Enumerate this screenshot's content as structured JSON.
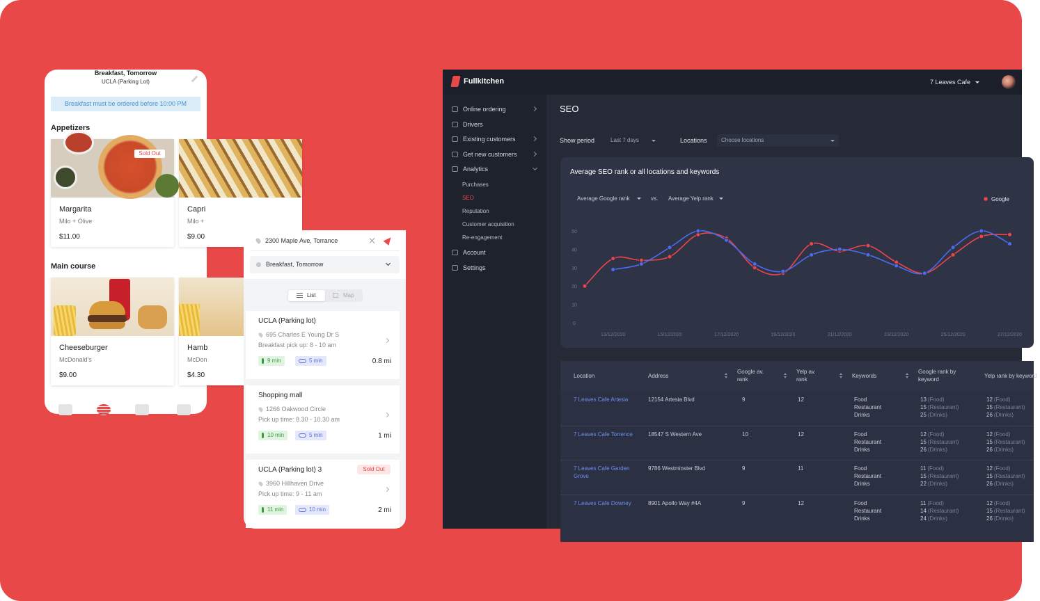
{
  "order_app": {
    "header": {
      "title": "Breakfast, Tomorrow",
      "subtitle": "UCLA (Parking Lot)"
    },
    "notice": "Breakfast must be ordered before 10:00 PM",
    "sections": [
      {
        "title": "Appetizers",
        "items": [
          {
            "name": "Margarita",
            "vendor": "Milo + Olive",
            "price": "$11.00",
            "badge": "Sold Out"
          },
          {
            "name": "Capri",
            "vendor": "Milo +",
            "price": "$9.00"
          }
        ]
      },
      {
        "title": "Main course",
        "items": [
          {
            "name": "Cheeseburger",
            "vendor": "McDonald's",
            "price": "$9.00"
          },
          {
            "name": "Hamb",
            "vendor": "McDon",
            "price": "$4.30"
          }
        ]
      }
    ]
  },
  "pickup_app": {
    "address": "2300 Maple Ave, Torrance",
    "meal": "Breakfast, Tomorrow",
    "tabs": [
      "List",
      "Map"
    ],
    "locations": [
      {
        "name": "UCLA (Parking lot)",
        "address": "695 Charles E Young Dr S",
        "pickup": "Breakfast pick up: 8 - 10 am",
        "walk": "9 min",
        "bike": "5 min",
        "distance": "0.8 mi"
      },
      {
        "name": "Shopping mall",
        "address": "1266  Oakwood Circle",
        "pickup": "Pick up time: 8.30 - 10.30 am",
        "walk": "10 min",
        "bike": "5 min",
        "distance": "1 mi"
      },
      {
        "name": "UCLA (Parking lot) 3",
        "badge": "Sold Out",
        "address": "3960  Hillhaven Drive",
        "pickup": "Pick up time: 9 - 11 am",
        "walk": "11 min",
        "bike": "10 min",
        "distance": "2 mi"
      }
    ]
  },
  "dashboard": {
    "brand": "Fullkitchen",
    "location": "7 Leaves Cafe",
    "nav": [
      {
        "label": "Online ordering"
      },
      {
        "label": "Drivers"
      },
      {
        "label": "Existing customers"
      },
      {
        "label": "Get new customers"
      },
      {
        "label": "Analytics",
        "children": [
          "Purchases",
          "SEO",
          "Reputation",
          "Customer acquisition",
          "Re-engagement"
        ]
      },
      {
        "label": "Account"
      },
      {
        "label": "Settings"
      }
    ],
    "page_title": "SEO",
    "filters": [
      {
        "label": "Show period",
        "value": "Last 7 days"
      },
      {
        "label": "Locations",
        "value": "Choose locations"
      }
    ],
    "chart_controls": {
      "left": "Average Google rank",
      "vs": "vs.",
      "right": "Average Yelp rank"
    },
    "table": {
      "headers": [
        "Location",
        "Address",
        "Google av. rank",
        "Yelp av. rank",
        "Keywords",
        "Google rank by keyword",
        "Yelp rank by keyword"
      ],
      "rows": [
        {
          "location": "7 Leaves Cafe Artesia",
          "address": "12154 Artesia Blvd",
          "google_avg": 9,
          "yelp_avg": 12,
          "keywords": [
            "Food",
            "Restaurant",
            "Drinks"
          ],
          "google_by_keyword": [
            {
              "rank": 13,
              "keyword": "(Food)"
            },
            {
              "rank": 15,
              "keyword": "(Restaurant)"
            },
            {
              "rank": 25,
              "keyword": "(Drinks)"
            }
          ],
          "yelp_by_keyword": [
            {
              "rank": 12,
              "keyword": "(Food)"
            },
            {
              "rank": 15,
              "keyword": "(Restaurant)"
            },
            {
              "rank": 26,
              "keyword": "(Drinks)"
            }
          ]
        },
        {
          "location": "7 Leaves Cafe Torrence",
          "address": "18547 S Western Ave",
          "google_avg": 10,
          "yelp_avg": 12,
          "keywords": [
            "Food",
            "Restaurant",
            "Drinks"
          ],
          "google_by_keyword": [
            {
              "rank": 12,
              "keyword": "(Food)"
            },
            {
              "rank": 15,
              "keyword": "(Restaurant)"
            },
            {
              "rank": 26,
              "keyword": "(Drinks)"
            }
          ],
          "yelp_by_keyword": [
            {
              "rank": 12,
              "keyword": "(Food)"
            },
            {
              "rank": 15,
              "keyword": "(Restaurant)"
            },
            {
              "rank": 26,
              "keyword": "(Drinks)"
            }
          ]
        },
        {
          "location": "7 Leaves Cafe Garden Grove",
          "address": "9786 Westminster Blvd",
          "google_avg": 9,
          "yelp_avg": 11,
          "keywords": [
            "Food",
            "Restaurant",
            "Drinks"
          ],
          "google_by_keyword": [
            {
              "rank": 11,
              "keyword": "(Food)"
            },
            {
              "rank": 15,
              "keyword": "(Restaurant)"
            },
            {
              "rank": 22,
              "keyword": "(Drinks)"
            }
          ],
          "yelp_by_keyword": [
            {
              "rank": 12,
              "keyword": "(Food)"
            },
            {
              "rank": 15,
              "keyword": "(Restaurant)"
            },
            {
              "rank": 26,
              "keyword": "(Drinks)"
            }
          ]
        },
        {
          "location": "7 Leaves Cafe Downey",
          "address": "8901 Apollo Way #4A",
          "google_avg": 9,
          "yelp_avg": 12,
          "keywords": [
            "Food",
            "Restaurant",
            "Drinks"
          ],
          "google_by_keyword": [
            {
              "rank": 11,
              "keyword": "(Food)"
            },
            {
              "rank": 14,
              "keyword": "(Restaurant)"
            },
            {
              "rank": 24,
              "keyword": "(Drinks)"
            }
          ],
          "yelp_by_keyword": [
            {
              "rank": 12,
              "keyword": "(Food)"
            },
            {
              "rank": 15,
              "keyword": "(Restaurant)"
            },
            {
              "rank": 26,
              "keyword": "(Drinks)"
            }
          ]
        }
      ]
    }
  },
  "chart_data": {
    "type": "line",
    "title": "Average SEO rank or all locations and keywords",
    "categories": [
      null,
      "13/12/2020",
      null,
      "15/12/2020",
      null,
      "17/12/2020",
      null,
      "19/12/2020",
      null,
      "21/12/2020",
      null,
      "23/12/2020",
      null,
      "25/12/2020",
      null,
      "27/12/2020"
    ],
    "series": [
      {
        "name": "Google",
        "color": "#f0434a",
        "values": [
          20,
          35,
          34,
          36,
          48,
          46,
          30,
          27,
          43,
          39,
          42,
          33,
          27,
          37,
          47,
          48
        ]
      },
      {
        "color": "#4b6cf0",
        "values": [
          null,
          29,
          32,
          41,
          50,
          45,
          32,
          28,
          37,
          40,
          37,
          31,
          27,
          41,
          50,
          43
        ]
      }
    ],
    "ylim": [
      0,
      50
    ],
    "yticks": [
      0,
      10,
      20,
      30,
      40,
      50
    ],
    "grid": false,
    "legend": "top-right"
  }
}
